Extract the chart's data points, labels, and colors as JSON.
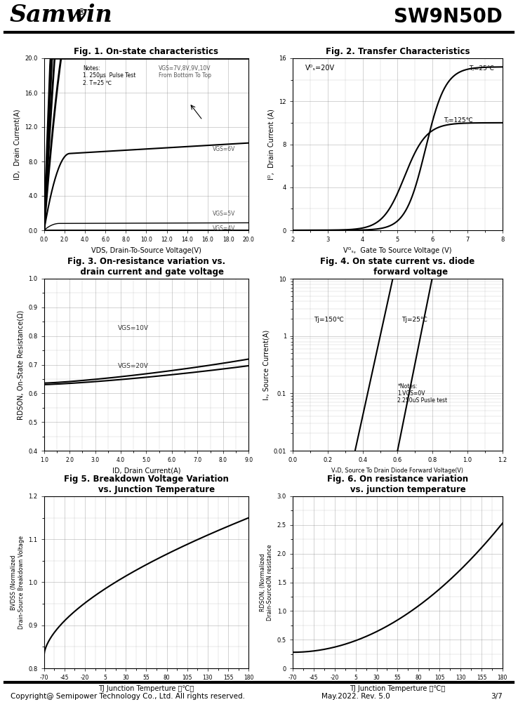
{
  "fig1_title": "Fig. 1. On-state characteristics",
  "fig2_title": "Fig. 2. Transfer Characteristics",
  "fig3_title": "Fig. 3. On-resistance variation vs.\n    drain current and gate voltage",
  "fig4_title": "Fig. 4. On state current vs. diode\n         forward voltage",
  "fig5_title": "Fig 5. Breakdown Voltage Variation\n       vs. Junction Temperature",
  "fig6_title": "Fig. 6. On resistance variation\n       vs. junction temperature",
  "footer_left": "Copyright@ Semipower Technology Co., Ltd. All rights reserved.",
  "footer_mid": "May.2022. Rev. 5.0",
  "footer_right": "3/7"
}
